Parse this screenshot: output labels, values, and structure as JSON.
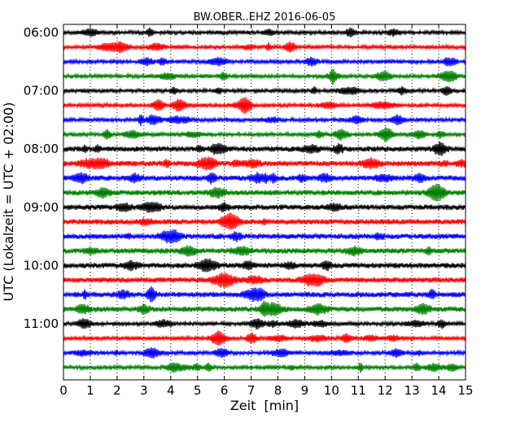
{
  "chart_data": {
    "type": "line",
    "title": "BW.OBER..EHZ 2016-06-05",
    "xlabel": "Zeit  [min]",
    "ylabel": "UTC (Lokalzeit = UTC + 02:00)",
    "xlim": [
      0,
      15
    ],
    "x_ticks": [
      "0",
      "1",
      "2",
      "3",
      "4",
      "5",
      "6",
      "7",
      "8",
      "9",
      "10",
      "11",
      "12",
      "13",
      "14",
      "15"
    ],
    "y_ticks": [
      {
        "label": "06:00",
        "trace_index": 0
      },
      {
        "label": "07:00",
        "trace_index": 4
      },
      {
        "label": "08:00",
        "trace_index": 8
      },
      {
        "label": "09:00",
        "trace_index": 12
      },
      {
        "label": "10:00",
        "trace_index": 16
      },
      {
        "label": "11:00",
        "trace_index": 20
      }
    ],
    "trace_interval_min": 15,
    "trace_colors": [
      "#000000",
      "#ff0000",
      "#0000ff",
      "#008000"
    ],
    "grid": "vertical dotted",
    "traces": [
      {
        "start": "06:00"
      },
      {
        "start": "06:15"
      },
      {
        "start": "06:30"
      },
      {
        "start": "06:45"
      },
      {
        "start": "07:00"
      },
      {
        "start": "07:15"
      },
      {
        "start": "07:30"
      },
      {
        "start": "07:45"
      },
      {
        "start": "08:00"
      },
      {
        "start": "08:15"
      },
      {
        "start": "08:30"
      },
      {
        "start": "08:45"
      },
      {
        "start": "09:00"
      },
      {
        "start": "09:15"
      },
      {
        "start": "09:30"
      },
      {
        "start": "09:45"
      },
      {
        "start": "10:00"
      },
      {
        "start": "10:15"
      },
      {
        "start": "10:30"
      },
      {
        "start": "10:45"
      },
      {
        "start": "11:00"
      },
      {
        "start": "11:15"
      },
      {
        "start": "11:30"
      },
      {
        "start": "11:45"
      }
    ]
  }
}
